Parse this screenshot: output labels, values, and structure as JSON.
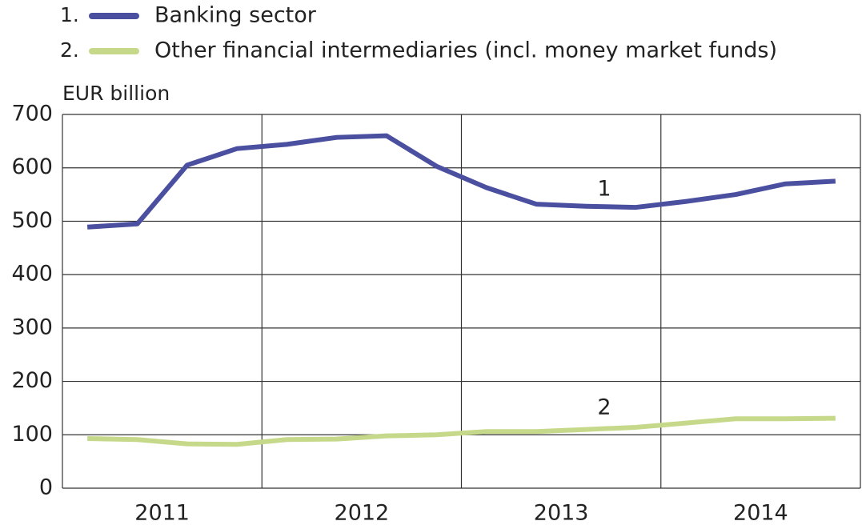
{
  "chart_data": {
    "type": "line",
    "y_label": "EUR billion",
    "x": [
      2011.125,
      2011.375,
      2011.625,
      2011.875,
      2012.125,
      2012.375,
      2012.625,
      2012.875,
      2013.125,
      2013.375,
      2013.625,
      2013.875,
      2014.125,
      2014.375,
      2014.625,
      2014.875
    ],
    "xlim": [
      2011,
      2015
    ],
    "xticks": [
      2011,
      2012,
      2013,
      2014
    ],
    "ylim": [
      0,
      700
    ],
    "yticks": [
      0,
      100,
      200,
      300,
      400,
      500,
      600,
      700
    ],
    "grid": true,
    "series": [
      {
        "number": "1.",
        "name": "Banking sector",
        "color": "#4a4fa0",
        "annotation": "1",
        "values": [
          489,
          495,
          605,
          636,
          644,
          657,
          660,
          603,
          563,
          532,
          528,
          526,
          537,
          550,
          570,
          575
        ]
      },
      {
        "number": "2.",
        "name": "Other financial intermediaries (incl. money market funds)",
        "color": "#c6d98a",
        "annotation": "2",
        "values": [
          93,
          91,
          83,
          82,
          91,
          92,
          98,
          100,
          106,
          106,
          110,
          114,
          122,
          130,
          130,
          131
        ]
      }
    ]
  }
}
